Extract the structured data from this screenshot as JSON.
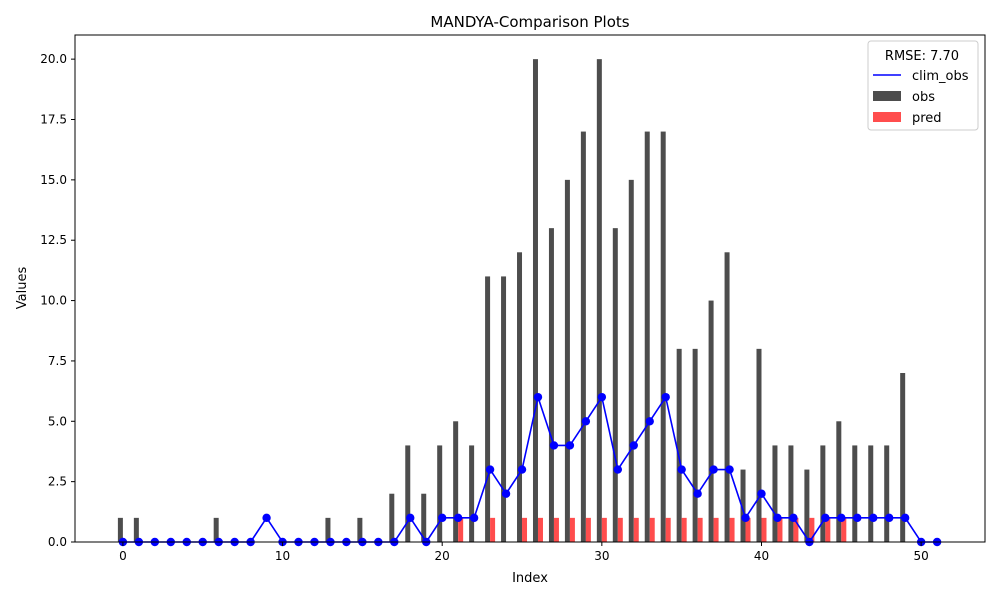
{
  "chart_data": {
    "type": "bar",
    "title": "MANDYA-Comparison Plots",
    "xlabel": "Index",
    "ylabel": "Values",
    "xlim": [
      -3,
      54
    ],
    "ylim": [
      0,
      21
    ],
    "xticks": [
      0,
      10,
      20,
      30,
      40,
      50
    ],
    "yticks": [
      0.0,
      2.5,
      5.0,
      7.5,
      10.0,
      12.5,
      15.0,
      17.5,
      20.0
    ],
    "ytick_labels": [
      "0.0",
      "2.5",
      "5.0",
      "7.5",
      "10.0",
      "12.5",
      "15.0",
      "17.5",
      "20.0"
    ],
    "x": [
      0,
      1,
      2,
      3,
      4,
      5,
      6,
      7,
      8,
      9,
      10,
      11,
      12,
      13,
      14,
      15,
      16,
      17,
      18,
      19,
      20,
      21,
      22,
      23,
      24,
      25,
      26,
      27,
      28,
      29,
      30,
      31,
      32,
      33,
      34,
      35,
      36,
      37,
      38,
      39,
      40,
      41,
      42,
      43,
      44,
      45,
      46,
      47,
      48,
      49,
      50,
      51
    ],
    "series": [
      {
        "name": "obs",
        "kind": "bar",
        "color": "#4d4d4d",
        "values": [
          1,
          1,
          0,
          0,
          0,
          0,
          1,
          0,
          0,
          0,
          0,
          0,
          0,
          1,
          0,
          1,
          0,
          2,
          4,
          2,
          4,
          5,
          4,
          11,
          11,
          12,
          20,
          13,
          15,
          17,
          20,
          13,
          15,
          17,
          17,
          8,
          8,
          10,
          12,
          3,
          8,
          4,
          4,
          3,
          4,
          5,
          4,
          4,
          4,
          7,
          0,
          0
        ]
      },
      {
        "name": "pred",
        "kind": "bar",
        "color": "#ff4d4d",
        "values": [
          0,
          0,
          0,
          0,
          0,
          0,
          0,
          0,
          0,
          0,
          0,
          0,
          0,
          0,
          0,
          0,
          0,
          0,
          0,
          0,
          0,
          1,
          0,
          1,
          0,
          1,
          1,
          1,
          1,
          1,
          1,
          1,
          1,
          1,
          1,
          1,
          1,
          1,
          1,
          1,
          1,
          1,
          1,
          1,
          1,
          1,
          0,
          0,
          0,
          0,
          0,
          0
        ]
      },
      {
        "name": "clim_obs",
        "kind": "line",
        "color": "#0000ff",
        "values": [
          0,
          0,
          0,
          0,
          0,
          0,
          0,
          0,
          0,
          1,
          0,
          0,
          0,
          0,
          0,
          0,
          0,
          0,
          1,
          0,
          1,
          1,
          1,
          3,
          2,
          3,
          6,
          4,
          4,
          5,
          6,
          3,
          4,
          5,
          6,
          3,
          2,
          3,
          3,
          1,
          2,
          1,
          1,
          0,
          1,
          1,
          1,
          1,
          1,
          1,
          0,
          0
        ]
      }
    ],
    "legend": {
      "title": "RMSE: 7.70",
      "placement": "top-right",
      "entries": [
        "clim_obs",
        "obs",
        "pred"
      ]
    },
    "grid": false
  }
}
